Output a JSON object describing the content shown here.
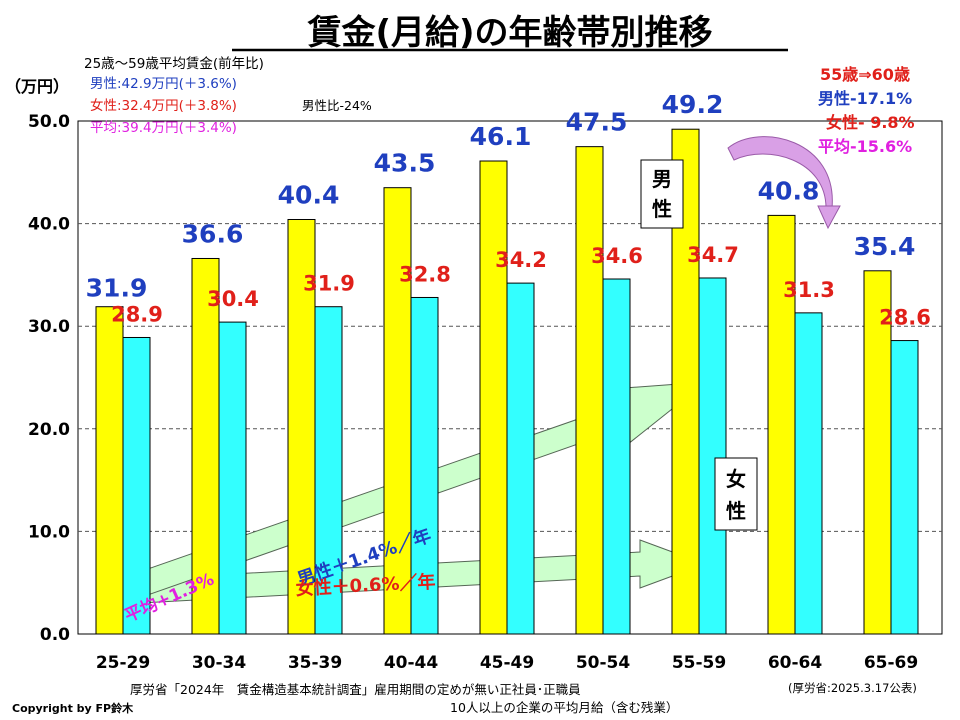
{
  "chart_data": {
    "type": "bar",
    "title": "賃金(月給)の年齢帯別推移",
    "ylabel": "（万円）",
    "ylim": [
      0,
      50
    ],
    "yticks": [
      "0.0",
      "10.0",
      "20.0",
      "30.0",
      "40.0",
      "50.0"
    ],
    "grid": true,
    "categories": [
      "25-29",
      "30-34",
      "35-39",
      "40-44",
      "45-49",
      "50-54",
      "55-59",
      "60-64",
      "65-69"
    ],
    "series": [
      {
        "name": "男性",
        "values": [
          31.9,
          36.6,
          40.4,
          43.5,
          46.1,
          47.5,
          49.2,
          40.8,
          35.4
        ],
        "labels": [
          "31.9",
          "36.6",
          "40.4",
          "43.5",
          "46.1",
          "47.5",
          "49.2",
          "40.8",
          "35.4"
        ],
        "color": "#ffff00"
      },
      {
        "name": "女性",
        "values": [
          28.9,
          30.4,
          31.9,
          32.8,
          34.2,
          34.6,
          34.7,
          31.3,
          28.6
        ],
        "labels": [
          "28.9",
          "30.4",
          "31.9",
          "32.8",
          "34.2",
          "34.6",
          "34.7",
          "31.3",
          "28.6"
        ],
        "color": "#33ffff"
      }
    ],
    "legend_boxes": {
      "male": "男性",
      "female": "女性"
    },
    "summary": {
      "heading": "25歳～59歳平均賃金(前年比)",
      "male": "男性:42.9万円(＋3.6%)",
      "female": "女性:32.4万円(＋3.8%)",
      "ratio": "男性比-24%",
      "average": "平均:39.4万円(＋3.4%)"
    },
    "drop_note": {
      "heading": "55歳⇒60歳",
      "male": "男性-17.1%",
      "female": "女性- 9.8%",
      "average": "平均-15.6%"
    },
    "trend_arrows": {
      "male": "男性＋1.4%／年",
      "female": "女性＋0.6%／年",
      "average": "平均+1.3%"
    },
    "source_line1": "厚労省「2024年　賃金構造基本統計調査」雇用期間の定めが無い正社員･正職員",
    "source_line2": "10人以上の企業の平均月給（含む残業）",
    "source_date": "(厚労省:2025.3.17公表)",
    "copyright": "Copyright by FP鈴木"
  },
  "colors": {
    "male_bar": "#ffff00",
    "female_bar": "#33ffff",
    "male_text": "#1f3fbf",
    "female_text": "#e0201a",
    "average_text": "#e020e0",
    "arrow_fill": "#ccffcc"
  }
}
